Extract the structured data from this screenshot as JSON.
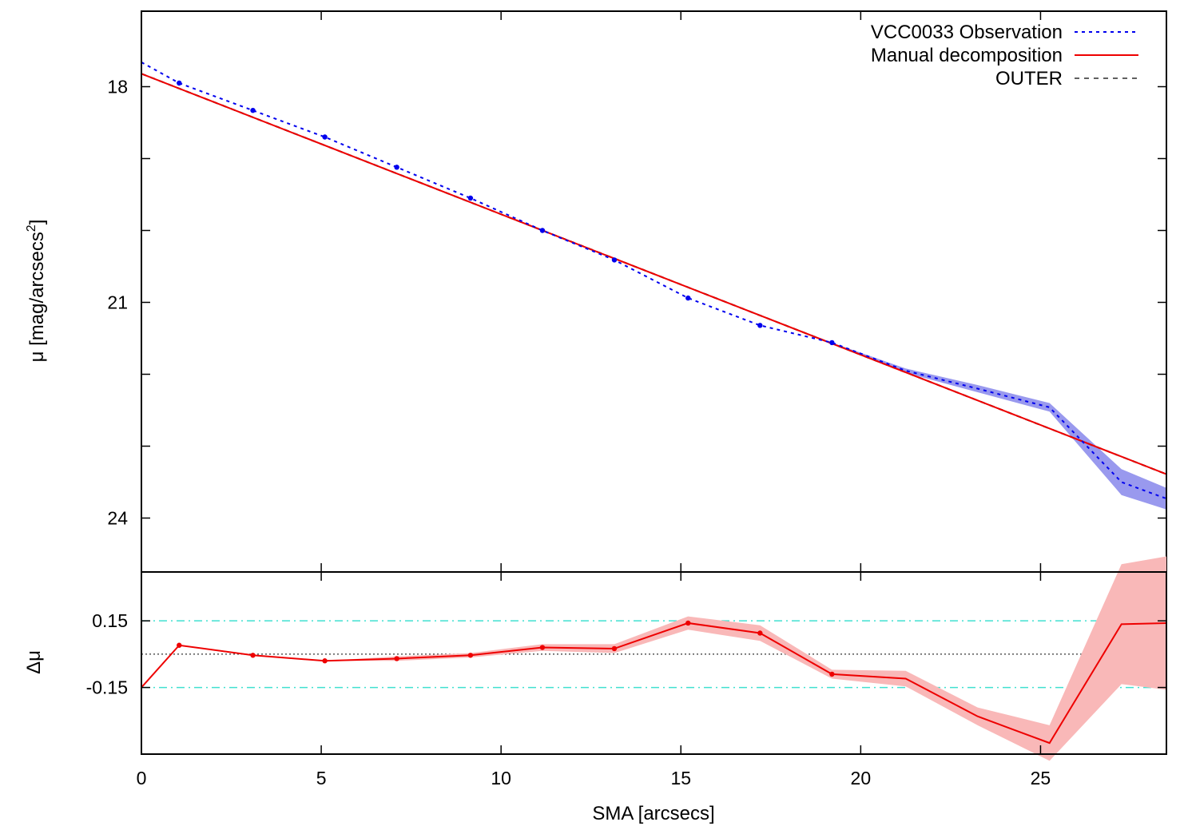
{
  "chart_data": [
    {
      "type": "line",
      "panel": "main",
      "xlabel": "",
      "ylabel": "μ [mag/arcsecs",
      "ylabel_sup": "2",
      "ylabel_close": "]",
      "xlim": [
        0,
        28.5
      ],
      "ylim": [
        24.75,
        16.95
      ],
      "y_reversed": true,
      "yticks": [
        18,
        21,
        24
      ],
      "ytick_labels": [
        "18",
        "21",
        "24"
      ],
      "yminor_ticks": [
        19,
        20,
        22,
        23
      ],
      "xticks": [
        0,
        5,
        10,
        15,
        20,
        25
      ],
      "legend_position": "top-right",
      "series": [
        {
          "name": "VCC0033 Observation",
          "style": "dotted",
          "color": "#0000ee",
          "band_color": "#9999ee",
          "x": [
            0,
            1.05,
            3.1,
            5.1,
            7.1,
            9.15,
            11.15,
            13.15,
            15.2,
            17.2,
            19.2,
            21.25,
            23.25,
            25.25,
            27.25,
            28.5
          ],
          "y": [
            17.66,
            17.95,
            18.33,
            18.7,
            19.12,
            19.55,
            20.0,
            20.41,
            20.94,
            21.32,
            21.56,
            21.95,
            22.2,
            22.46,
            23.5,
            23.73
          ],
          "err": [
            0,
            0,
            0,
            0,
            0,
            0,
            0,
            0,
            0,
            0,
            0,
            0.03,
            0.05,
            0.06,
            0.18,
            0.15
          ],
          "markers": [
            1.05,
            3.1,
            5.1,
            7.1,
            9.15,
            11.15,
            13.15,
            15.2,
            17.2,
            19.2
          ]
        },
        {
          "name": "Manual decomposition",
          "style": "solid",
          "color": "#ee0000",
          "x": [
            0,
            28.5
          ],
          "y": [
            17.82,
            23.39
          ]
        },
        {
          "name": "OUTER",
          "style": "dashed",
          "color": "#000000",
          "x": [
            0,
            28.5
          ],
          "y": [
            17.82,
            23.39
          ]
        }
      ]
    },
    {
      "type": "line",
      "panel": "residual",
      "xlabel": "SMA [arcsecs]",
      "ylabel": "Δμ",
      "xlim": [
        0,
        28.5
      ],
      "ylim": [
        -0.45,
        0.37
      ],
      "yticks": [
        0.15,
        -0.15
      ],
      "ytick_labels": [
        "0.15",
        "-0.15"
      ],
      "xticks": [
        0,
        5,
        10,
        15,
        20,
        25
      ],
      "xtick_labels": [
        "0",
        "5",
        "10",
        "15",
        "20",
        "25"
      ],
      "reference_lines": [
        {
          "y": 0.15,
          "style": "dash-dot",
          "color": "#40e0d0"
        },
        {
          "y": -0.15,
          "style": "dash-dot",
          "color": "#40e0d0"
        },
        {
          "y": 0,
          "style": "dotted",
          "color": "#000000"
        }
      ],
      "series": [
        {
          "name": "",
          "style": "solid",
          "color": "#ee0000",
          "band_color": "#f9b8b8",
          "x": [
            0,
            1.05,
            3.1,
            5.1,
            7.1,
            9.15,
            11.15,
            13.15,
            15.2,
            17.2,
            19.2,
            21.25,
            23.25,
            25.25,
            27.25,
            28.5
          ],
          "y": [
            -0.15,
            0.04,
            -0.005,
            -0.03,
            -0.02,
            -0.005,
            0.03,
            0.025,
            0.14,
            0.095,
            -0.09,
            -0.11,
            -0.28,
            -0.4,
            0.135,
            0.14
          ],
          "err": [
            0,
            0,
            0,
            0,
            0.01,
            0.01,
            0.015,
            0.02,
            0.03,
            0.035,
            0.02,
            0.035,
            0.04,
            0.08,
            0.27,
            0.3
          ],
          "markers": [
            1.05,
            3.1,
            5.1,
            7.1,
            9.15,
            11.15,
            13.15,
            15.2,
            17.2,
            19.2
          ]
        }
      ]
    }
  ]
}
